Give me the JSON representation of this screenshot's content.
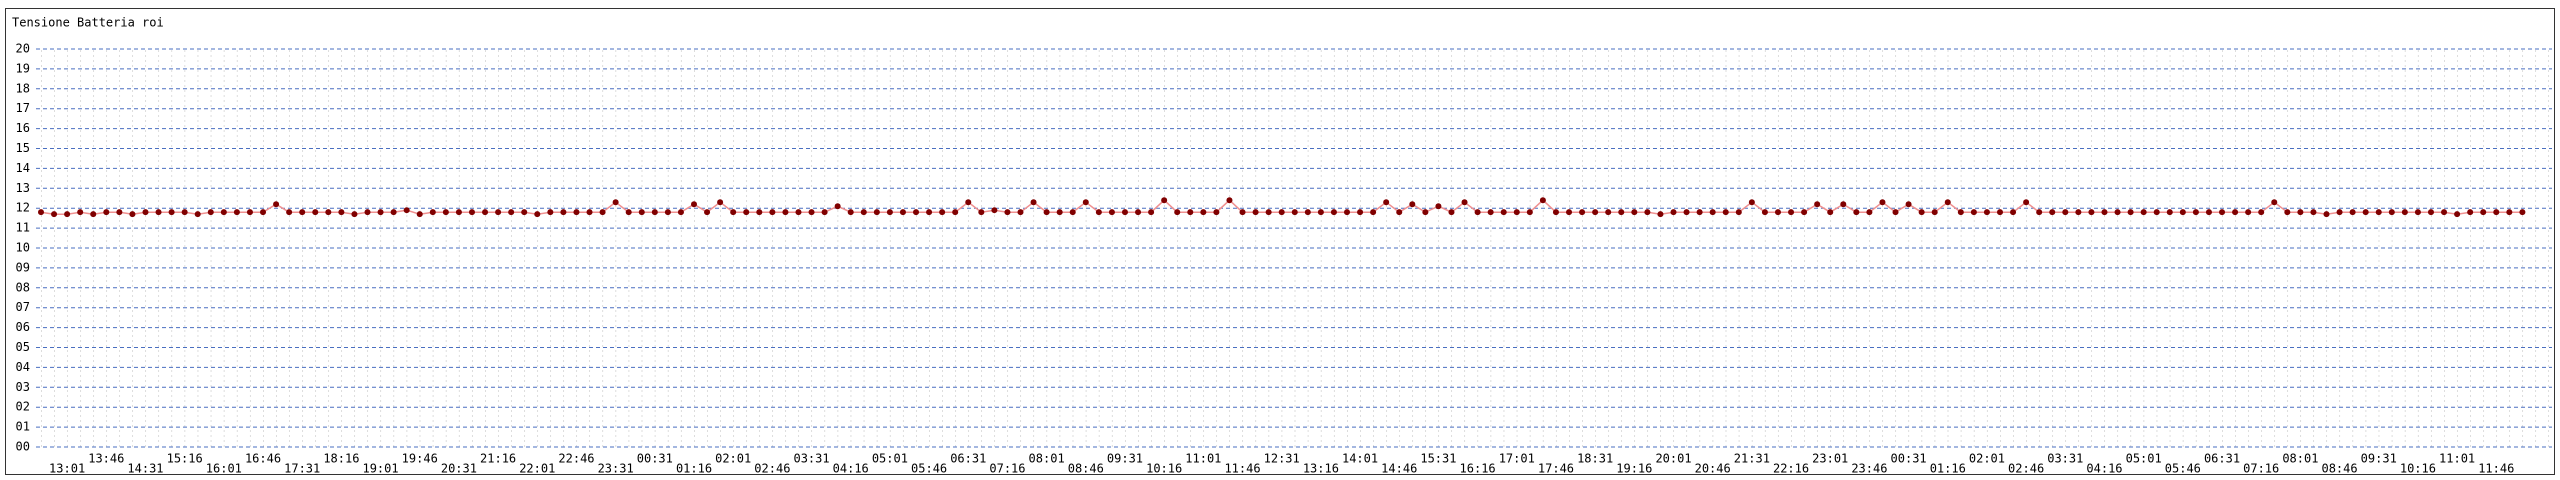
{
  "chart_data": {
    "type": "line",
    "title": "Tensione Batteria roi",
    "categories": [
      null,
      null,
      "13:01",
      null,
      null,
      "13:46",
      null,
      null,
      "14:31",
      null,
      null,
      "15:16",
      null,
      null,
      "16:01",
      null,
      null,
      "16:46",
      null,
      null,
      "17:31",
      null,
      null,
      "18:16",
      null,
      null,
      "19:01",
      null,
      null,
      "19:46",
      null,
      null,
      "20:31",
      null,
      null,
      "21:16",
      null,
      null,
      "22:01",
      null,
      null,
      "22:46",
      null,
      null,
      "23:31",
      null,
      null,
      "00:31",
      null,
      null,
      "01:16",
      null,
      null,
      "02:01",
      null,
      null,
      "02:46",
      null,
      null,
      "03:31",
      null,
      null,
      "04:16",
      null,
      null,
      "05:01",
      null,
      null,
      "05:46",
      null,
      null,
      "06:31",
      null,
      null,
      "07:16",
      null,
      null,
      "08:01",
      null,
      null,
      "08:46",
      null,
      null,
      "09:31",
      null,
      null,
      "10:16",
      null,
      null,
      "11:01",
      null,
      null,
      "11:46",
      null,
      null,
      "12:31",
      null,
      null,
      "13:16",
      null,
      null,
      "14:01",
      null,
      null,
      "14:46",
      null,
      null,
      "15:31",
      null,
      null,
      "16:16",
      null,
      null,
      "17:01",
      null,
      null,
      "17:46",
      null,
      null,
      "18:31",
      null,
      null,
      "19:16",
      null,
      null,
      "20:01",
      null,
      null,
      "20:46",
      null,
      null,
      "21:31",
      null,
      null,
      "22:16",
      null,
      null,
      "23:01",
      null,
      null,
      "23:46",
      null,
      null,
      "00:31",
      null,
      null,
      "01:16",
      null,
      null,
      "02:01",
      null,
      null,
      "02:46",
      null,
      null,
      "03:31",
      null,
      null,
      "04:16",
      null,
      null,
      "05:01",
      null,
      null,
      "05:46",
      null,
      null,
      "06:31",
      null,
      null,
      "07:16",
      null,
      null,
      "08:01",
      null,
      null,
      "08:46",
      null,
      null,
      "09:31",
      null,
      null,
      "10:16",
      null,
      null,
      "11:01",
      null,
      null,
      "11:46",
      null,
      null
    ],
    "values": [
      11.8,
      11.7,
      11.7,
      11.8,
      11.7,
      11.8,
      11.8,
      11.7,
      11.8,
      11.8,
      11.8,
      11.8,
      11.7,
      11.8,
      11.8,
      11.8,
      11.8,
      11.8,
      12.2,
      11.8,
      11.8,
      11.8,
      11.8,
      11.8,
      11.7,
      11.8,
      11.8,
      11.8,
      11.9,
      11.7,
      11.8,
      11.8,
      11.8,
      11.8,
      11.8,
      11.8,
      11.8,
      11.8,
      11.7,
      11.8,
      11.8,
      11.8,
      11.8,
      11.8,
      12.3,
      11.8,
      11.8,
      11.8,
      11.8,
      11.8,
      12.2,
      11.8,
      12.3,
      11.8,
      11.8,
      11.8,
      11.8,
      11.8,
      11.8,
      11.8,
      11.8,
      12.1,
      11.8,
      11.8,
      11.8,
      11.8,
      11.8,
      11.8,
      11.8,
      11.8,
      11.8,
      12.3,
      11.8,
      11.9,
      11.8,
      11.8,
      12.3,
      11.8,
      11.8,
      11.8,
      12.3,
      11.8,
      11.8,
      11.8,
      11.8,
      11.8,
      12.4,
      11.8,
      11.8,
      11.8,
      11.8,
      12.4,
      11.8,
      11.8,
      11.8,
      11.8,
      11.8,
      11.8,
      11.8,
      11.8,
      11.8,
      11.8,
      11.8,
      12.3,
      11.8,
      12.2,
      11.8,
      12.1,
      11.8,
      12.3,
      11.8,
      11.8,
      11.8,
      11.8,
      11.8,
      12.4,
      11.8,
      11.8,
      11.8,
      11.8,
      11.8,
      11.8,
      11.8,
      11.8,
      11.7,
      11.8,
      11.8,
      11.8,
      11.8,
      11.8,
      11.8,
      12.3,
      11.8,
      11.8,
      11.8,
      11.8,
      12.2,
      11.8,
      12.2,
      11.8,
      11.8,
      12.3,
      11.8,
      12.2,
      11.8,
      11.8,
      12.3,
      11.8,
      11.8,
      11.8,
      11.8,
      11.8,
      12.3,
      11.8,
      11.8,
      11.8,
      11.8,
      11.8,
      11.8,
      11.8,
      11.8,
      11.8,
      11.8,
      11.8,
      11.8,
      11.8,
      11.8,
      11.8,
      11.8,
      11.8,
      11.8,
      12.3,
      11.8,
      11.8,
      11.8,
      11.7,
      11.8,
      11.8,
      11.8,
      11.8,
      11.8,
      11.8,
      11.8,
      11.8,
      11.8,
      11.7,
      11.8,
      11.8,
      11.8,
      11.8,
      11.8
    ],
    "color": "#800000",
    "ylim": [
      0,
      20
    ],
    "yticks": [
      {
        "value": 0,
        "label": "00"
      },
      {
        "value": 1,
        "label": "01"
      },
      {
        "value": 2,
        "label": "02"
      },
      {
        "value": 3,
        "label": "03"
      },
      {
        "value": 4,
        "label": "04"
      },
      {
        "value": 5,
        "label": "05"
      },
      {
        "value": 6,
        "label": "06"
      },
      {
        "value": 7,
        "label": "07"
      },
      {
        "value": 8,
        "label": "08"
      },
      {
        "value": 9,
        "label": "09"
      },
      10,
      11,
      12,
      13,
      14,
      15,
      16,
      17,
      18,
      19,
      20
    ],
    "grid": true
  }
}
